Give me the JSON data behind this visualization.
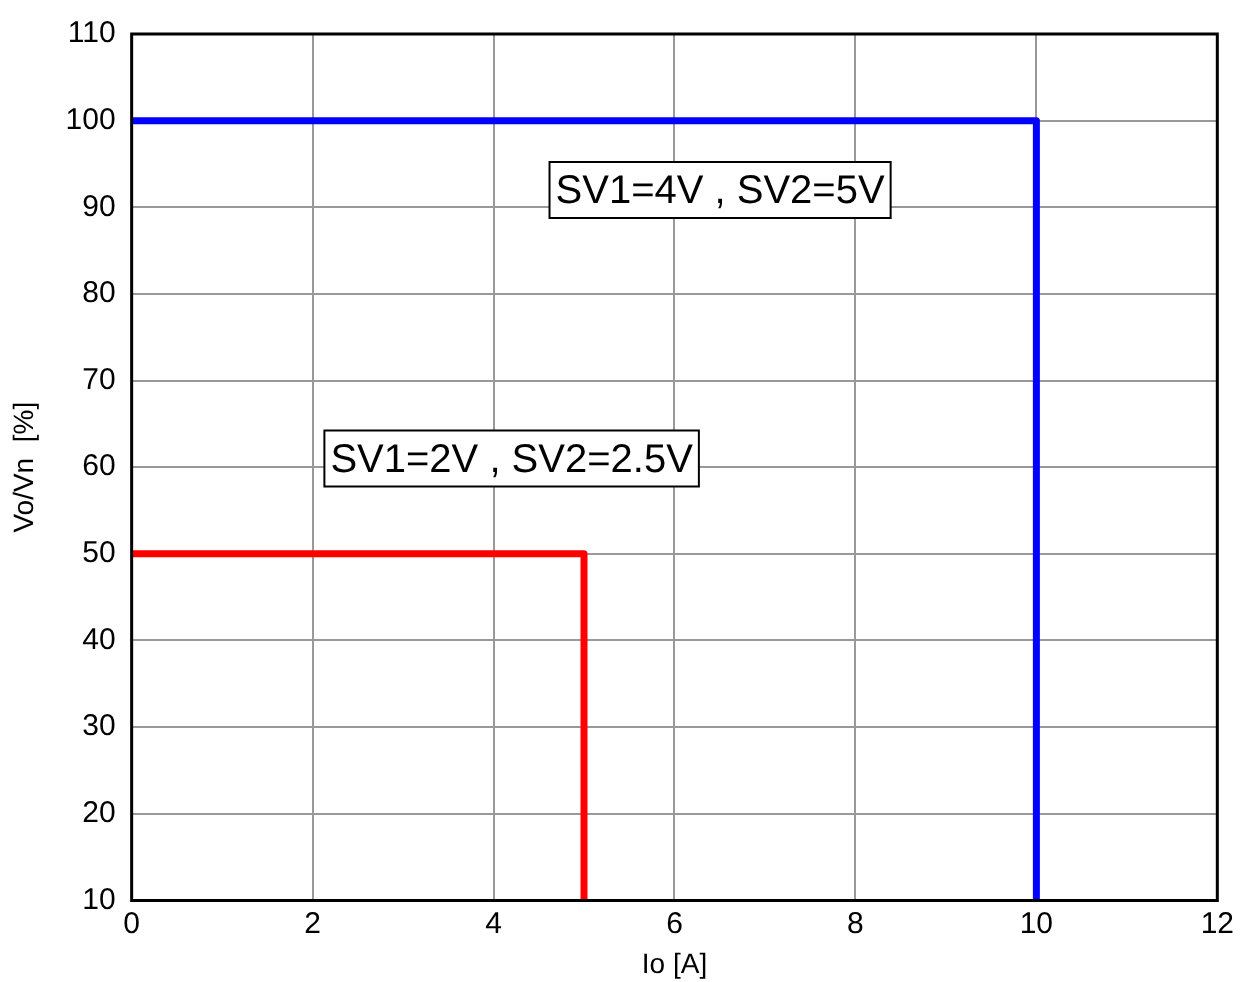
{
  "chart_data": {
    "type": "line",
    "xlabel": "Io [A]",
    "ylabel": "Vo/Vn  [%]",
    "xlim": [
      0,
      12
    ],
    "xticks": [
      0,
      2,
      4,
      6,
      8,
      10,
      12
    ],
    "ylim": [
      10,
      110
    ],
    "yticks": [
      10,
      20,
      30,
      40,
      50,
      60,
      70,
      80,
      90,
      100,
      110
    ],
    "grid": true,
    "legend": false,
    "marker": "none",
    "line_style": "solid",
    "series": [
      {
        "color": "#0000ff",
        "x": [
          0,
          10,
          10
        ],
        "values": [
          100,
          100,
          10
        ]
      },
      {
        "color": "#ff0000",
        "x": [
          0,
          5,
          5
        ],
        "values": [
          50,
          50,
          10
        ]
      }
    ],
    "annotations": [
      "SV1=4V , SV2=5V",
      "SV1=2V , SV2=2.5V"
    ]
  }
}
